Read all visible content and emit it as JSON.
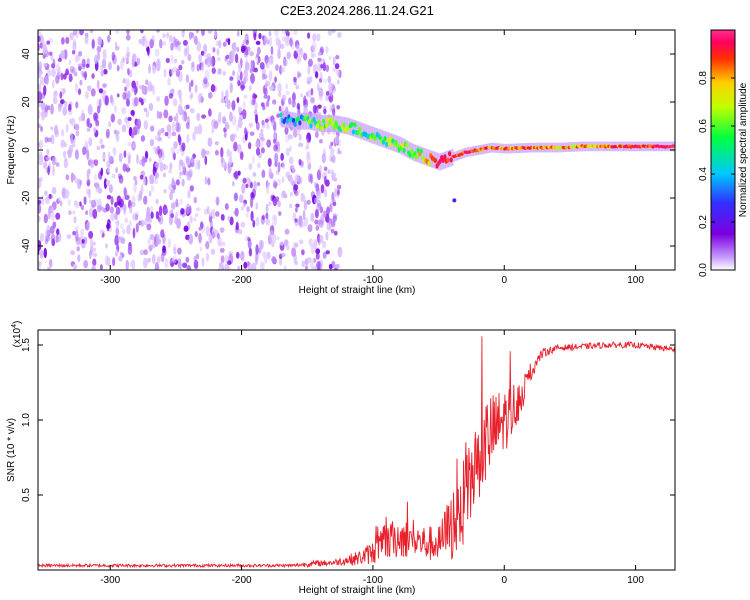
{
  "figure_title": "C2E3.2024.286.11.24.G21",
  "chart_data": [
    {
      "type": "heatmap",
      "title": "C2E3.2024.286.11.24.G21",
      "xlabel": "Height of straight line (km)",
      "ylabel": "Frequency (Hz)",
      "xlim": [
        -355,
        130
      ],
      "ylim": [
        -50,
        50
      ],
      "x_ticks": [
        -300,
        -200,
        -100,
        0,
        100
      ],
      "y_ticks": [
        -40,
        -20,
        0,
        20,
        40
      ],
      "x_tick_labels": [
        "-300",
        "-200",
        "-100",
        "0",
        "100"
      ],
      "y_tick_labels": [
        "-40",
        "-20",
        "0",
        "20",
        "40"
      ],
      "colorbar": {
        "label": "Normalized spectral amplitude",
        "range": [
          0,
          1
        ],
        "ticks": [
          0.0,
          0.2,
          0.4,
          0.6,
          0.8
        ],
        "tick_labels": [
          "0.0",
          "0.2",
          "0.4",
          "0.6",
          "0.8"
        ],
        "colors": [
          "#ffffff",
          "#c8a0ff",
          "#7b00e0",
          "#3030ff",
          "#00c8ff",
          "#00ff40",
          "#c0ff00",
          "#ffd000",
          "#ff3000",
          "#ff0060",
          "#ff3090"
        ]
      },
      "noise_region_x": [
        -355,
        -125
      ],
      "frequency_track": {
        "x": [
          -170,
          -160,
          -150,
          -140,
          -130,
          -120,
          -110,
          -100,
          -90,
          -80,
          -70,
          -60,
          -50,
          -40,
          -30,
          -20,
          -10,
          0,
          20,
          40,
          60,
          80,
          100,
          130
        ],
        "frequency": [
          13,
          12,
          12,
          11,
          11,
          10,
          8,
          6,
          4,
          2,
          -1,
          -3,
          -5,
          -3,
          -1,
          0,
          1,
          0.5,
          1,
          1,
          1.5,
          1.5,
          1.5,
          1.5
        ],
        "amplitude": [
          0.35,
          0.4,
          0.45,
          0.5,
          0.55,
          0.55,
          0.45,
          0.5,
          0.55,
          0.55,
          0.6,
          0.65,
          0.85,
          0.8,
          0.85,
          0.8,
          0.75,
          0.8,
          0.75,
          0.7,
          0.7,
          0.75,
          0.85,
          0.9
        ]
      }
    },
    {
      "type": "line",
      "xlabel": "Height of straight line (km)",
      "ylabel": "SNR (10 * v/v)",
      "scale_label": "(x10",
      "scale_exponent": "4",
      "xlim": [
        -355,
        130
      ],
      "ylim": [
        0,
        1.6
      ],
      "x_ticks": [
        -300,
        -200,
        -100,
        0,
        100
      ],
      "y_ticks": [
        0.5,
        1.0,
        1.5
      ],
      "x_tick_labels": [
        "-300",
        "-200",
        "-100",
        "0",
        "100"
      ],
      "y_tick_labels": [
        "0.5",
        "1.0",
        "1.5"
      ],
      "series": [
        {
          "color": "#e8202a",
          "x": [
            -355,
            -300,
            -250,
            -200,
            -160,
            -150,
            -130,
            -110,
            -100,
            -90,
            -80,
            -70,
            -60,
            -50,
            -40,
            -30,
            -25,
            -20,
            -15,
            -10,
            -5,
            0,
            5,
            10,
            15,
            20,
            25,
            30,
            40,
            60,
            80,
            100,
            120,
            130
          ],
          "y": [
            0.03,
            0.03,
            0.03,
            0.03,
            0.03,
            0.04,
            0.05,
            0.08,
            0.12,
            0.18,
            0.22,
            0.2,
            0.18,
            0.17,
            0.3,
            0.45,
            0.6,
            0.75,
            0.85,
            0.9,
            0.95,
            1.0,
            1.05,
            1.12,
            1.2,
            1.3,
            1.4,
            1.45,
            1.48,
            1.49,
            1.5,
            1.5,
            1.48,
            1.47
          ],
          "noise": [
            0.01,
            0.01,
            0.01,
            0.01,
            0.01,
            0.02,
            0.02,
            0.05,
            0.08,
            0.12,
            0.14,
            0.12,
            0.12,
            0.12,
            0.25,
            0.3,
            0.3,
            0.3,
            0.3,
            0.28,
            0.25,
            0.22,
            0.2,
            0.15,
            0.1,
            0.06,
            0.04,
            0.03,
            0.02,
            0.02,
            0.02,
            0.02,
            0.02,
            0.02
          ]
        }
      ]
    }
  ]
}
